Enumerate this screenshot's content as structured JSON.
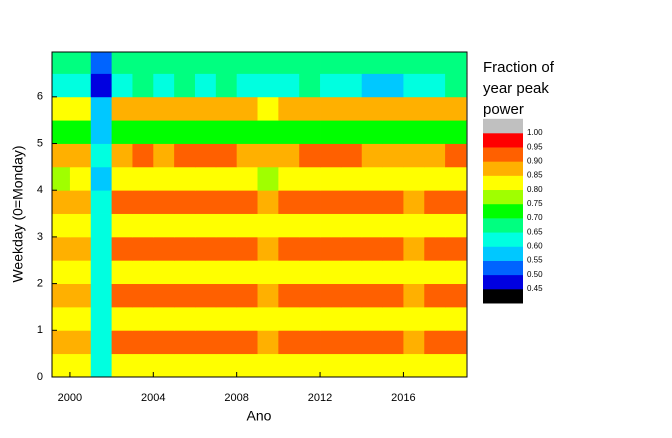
{
  "chart_data": {
    "type": "heatmap",
    "xlabel": "Ano",
    "ylabel": "Weekday (0=Monday)",
    "x": [
      1999.5,
      2000.5,
      2001.5,
      2002.5,
      2003.5,
      2004.5,
      2005.5,
      2006.5,
      2007.5,
      2008.5,
      2009.5,
      2010.5,
      2011.5,
      2012.5,
      2013.5,
      2014.5,
      2015.5,
      2016.5,
      2017.5,
      2018.5
    ],
    "y": [
      0.25,
      0.75,
      1.25,
      1.75,
      2.25,
      2.75,
      3.25,
      3.75,
      4.25,
      4.75,
      5.25,
      5.75,
      6.25,
      6.75
    ],
    "z": [
      [
        0.8,
        0.8,
        0.6,
        0.82,
        0.83,
        0.82,
        0.83,
        0.82,
        0.83,
        0.82,
        0.8,
        0.82,
        0.83,
        0.82,
        0.83,
        0.82,
        0.82,
        0.81,
        0.82,
        0.83
      ],
      [
        0.87,
        0.88,
        0.62,
        0.91,
        0.92,
        0.91,
        0.92,
        0.93,
        0.92,
        0.91,
        0.88,
        0.91,
        0.92,
        0.93,
        0.92,
        0.91,
        0.9,
        0.89,
        0.91,
        0.92
      ],
      [
        0.8,
        0.8,
        0.6,
        0.82,
        0.83,
        0.82,
        0.83,
        0.82,
        0.83,
        0.82,
        0.8,
        0.82,
        0.83,
        0.82,
        0.83,
        0.82,
        0.82,
        0.81,
        0.82,
        0.83
      ],
      [
        0.87,
        0.88,
        0.62,
        0.91,
        0.92,
        0.91,
        0.92,
        0.93,
        0.92,
        0.91,
        0.88,
        0.91,
        0.92,
        0.93,
        0.92,
        0.91,
        0.9,
        0.89,
        0.91,
        0.92
      ],
      [
        0.8,
        0.8,
        0.6,
        0.82,
        0.83,
        0.82,
        0.83,
        0.82,
        0.83,
        0.82,
        0.8,
        0.82,
        0.83,
        0.82,
        0.83,
        0.82,
        0.82,
        0.81,
        0.82,
        0.83
      ],
      [
        0.87,
        0.88,
        0.62,
        0.91,
        0.92,
        0.91,
        0.92,
        0.93,
        0.92,
        0.91,
        0.88,
        0.91,
        0.92,
        0.93,
        0.92,
        0.91,
        0.9,
        0.89,
        0.91,
        0.92
      ],
      [
        0.8,
        0.8,
        0.6,
        0.82,
        0.83,
        0.82,
        0.83,
        0.82,
        0.83,
        0.82,
        0.8,
        0.82,
        0.83,
        0.82,
        0.83,
        0.82,
        0.82,
        0.81,
        0.82,
        0.83
      ],
      [
        0.87,
        0.88,
        0.62,
        0.91,
        0.92,
        0.91,
        0.92,
        0.93,
        0.92,
        0.91,
        0.88,
        0.91,
        0.92,
        0.93,
        0.92,
        0.91,
        0.9,
        0.89,
        0.91,
        0.92
      ],
      [
        0.79,
        0.8,
        0.58,
        0.81,
        0.82,
        0.81,
        0.82,
        0.81,
        0.82,
        0.81,
        0.79,
        0.81,
        0.82,
        0.81,
        0.82,
        0.81,
        0.8,
        0.8,
        0.81,
        0.82
      ],
      [
        0.86,
        0.87,
        0.6,
        0.89,
        0.9,
        0.89,
        0.9,
        0.91,
        0.9,
        0.89,
        0.86,
        0.89,
        0.9,
        0.91,
        0.9,
        0.89,
        0.88,
        0.87,
        0.89,
        0.9
      ],
      [
        0.7,
        0.71,
        0.55,
        0.72,
        0.73,
        0.72,
        0.73,
        0.72,
        0.73,
        0.72,
        0.7,
        0.72,
        0.73,
        0.72,
        0.73,
        0.72,
        0.71,
        0.71,
        0.72,
        0.73
      ],
      [
        0.82,
        0.83,
        0.57,
        0.86,
        0.87,
        0.86,
        0.87,
        0.86,
        0.87,
        0.86,
        0.83,
        0.86,
        0.87,
        0.86,
        0.87,
        0.86,
        0.85,
        0.85,
        0.86,
        0.87
      ],
      [
        0.63,
        0.62,
        0.48,
        0.64,
        0.65,
        0.64,
        0.65,
        0.64,
        0.65,
        0.64,
        0.6,
        0.64,
        0.65,
        0.64,
        0.63,
        0.58,
        0.57,
        0.62,
        0.64,
        0.65
      ],
      [
        0.66,
        0.67,
        0.5,
        0.68,
        0.69,
        0.68,
        0.69,
        0.68,
        0.69,
        0.68,
        0.66,
        0.68,
        0.69,
        0.68,
        0.69,
        0.67,
        0.66,
        0.67,
        0.68,
        0.69
      ]
    ],
    "xlim": [
      1999.14,
      2019.05
    ],
    "ylim": [
      0,
      6.96
    ],
    "xticks": [
      2000,
      2004,
      2008,
      2012,
      2016
    ],
    "yticks": [
      0,
      1,
      2,
      3,
      4,
      5,
      6
    ],
    "colorbar": {
      "title": "Fraction of year peak power",
      "ticks": [
        0.45,
        {
          "value": 0.5,
          "label": "0.50"
        },
        0.55,
        {
          "value": 0.6,
          "label": "0.60"
        },
        0.65,
        {
          "value": 0.7,
          "label": "0.70"
        },
        0.75,
        {
          "value": 0.8,
          "label": "0.80"
        },
        0.85,
        {
          "value": 0.9,
          "label": "0.90"
        },
        0.95,
        {
          "value": 1,
          "label": "1.00"
        }
      ],
      "colors": [
        "#000000",
        "#0000e0",
        "#0064ff",
        "#00c8ff",
        "#00ffe0",
        "#00ff80",
        "#00ff00",
        "#a0ff00",
        "#ffff00",
        "#ffb000",
        "#ff6000",
        "#ff0000",
        "#c0c0c0"
      ]
    }
  }
}
